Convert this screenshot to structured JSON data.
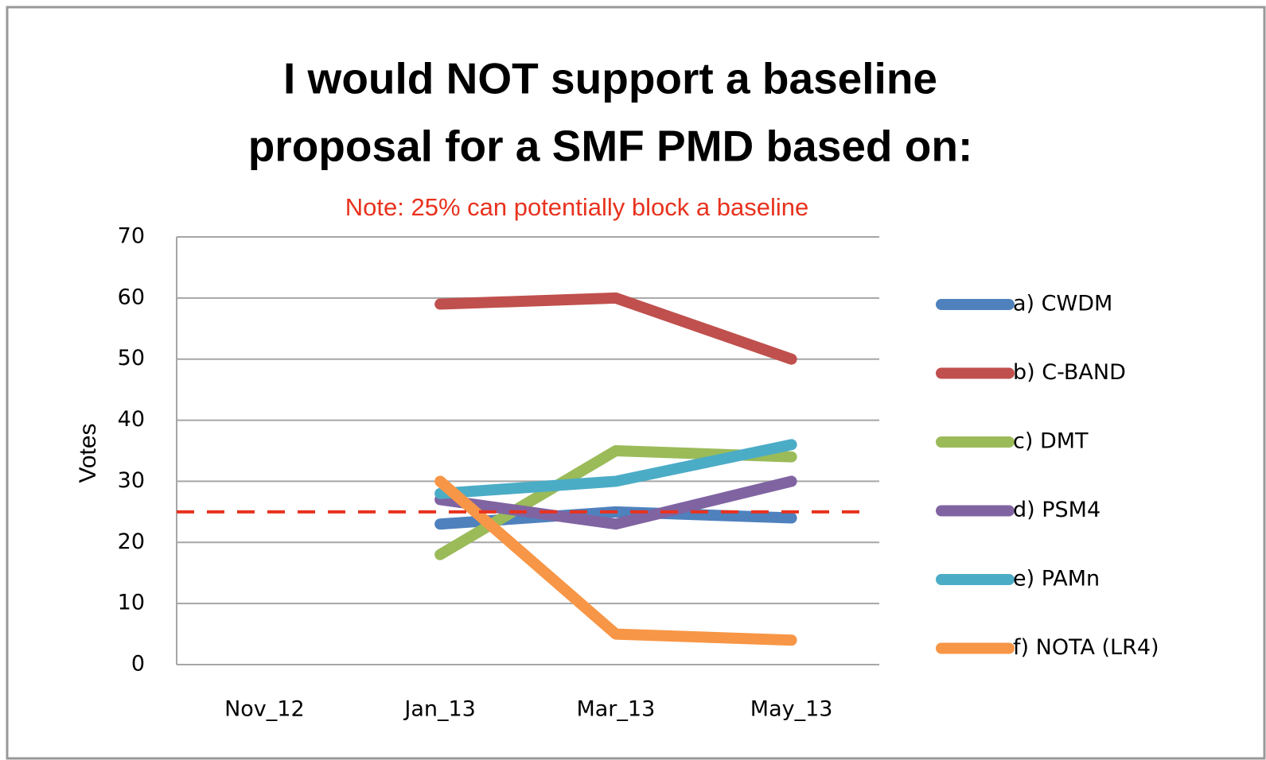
{
  "chart_data": {
    "type": "line",
    "title": [
      "I would NOT support a baseline",
      "proposal for a SMF PMD based on:"
    ],
    "annotation": "Note: 25% can potentially block a baseline",
    "threshold": 25,
    "threshold_color": "#e8321e",
    "y_label": "Votes",
    "categories": [
      "Nov_12",
      "Jan_13",
      "Mar_13",
      "May_13"
    ],
    "series": [
      {
        "name": "a) CWDM",
        "color": "#4f81bd",
        "values": [
          null,
          23,
          25,
          24
        ]
      },
      {
        "name": "b) C-BAND",
        "color": "#c0504d",
        "values": [
          null,
          59,
          60,
          50
        ]
      },
      {
        "name": "c) DMT",
        "color": "#9bbb59",
        "values": [
          null,
          18,
          35,
          34
        ]
      },
      {
        "name": "d) PSM4",
        "color": "#8064a2",
        "values": [
          null,
          27,
          23,
          30
        ]
      },
      {
        "name": "e) PAMn",
        "color": "#4bacc6",
        "values": [
          null,
          28,
          30,
          36
        ]
      },
      {
        "name": "f) NOTA (LR4)",
        "color": "#f79646",
        "values": [
          null,
          30,
          5,
          4
        ]
      }
    ],
    "ylim": [
      0,
      70
    ],
    "yticks": [
      0,
      10,
      20,
      30,
      40,
      50,
      60,
      70
    ],
    "grid": true,
    "legend": "right"
  }
}
